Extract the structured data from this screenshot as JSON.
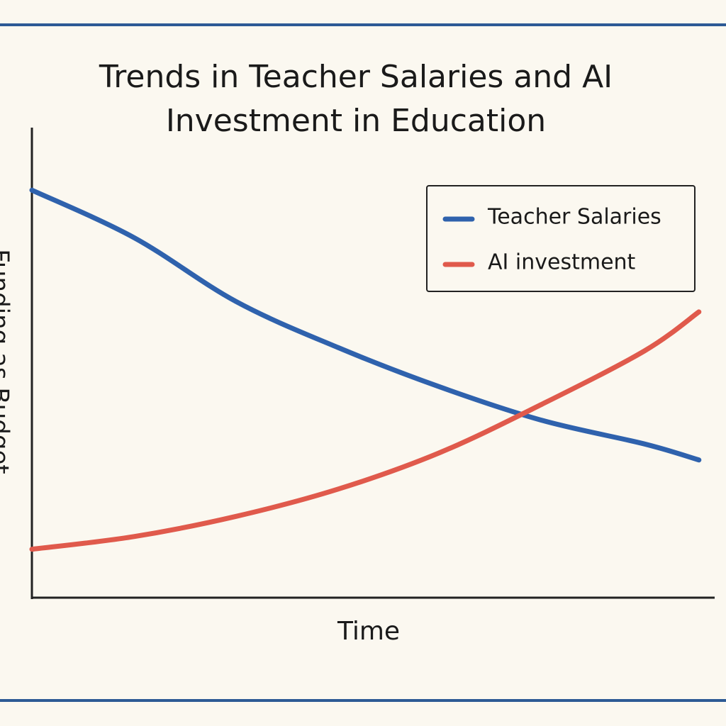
{
  "chart_data": {
    "type": "line",
    "title": "Trends in Teacher Salaries and AI Investment in Education",
    "xlabel": "Time",
    "ylabel": "Funding as Budget",
    "x": [
      0,
      15,
      30,
      45,
      60,
      75,
      90,
      98
    ],
    "xlim": [
      0,
      100
    ],
    "ylim": [
      0,
      100
    ],
    "series": [
      {
        "name": "Teacher Salaries",
        "color": "#2f62ad",
        "values": [
          86.7,
          76.6,
          63.0,
          53.2,
          44.8,
          37.7,
          32.7,
          29.3
        ]
      },
      {
        "name": "AI investment",
        "color": "#e05a4c",
        "values": [
          10.3,
          13.0,
          17.3,
          23.1,
          30.9,
          41.2,
          52.5,
          60.8
        ]
      }
    ],
    "legend": "upper right"
  }
}
